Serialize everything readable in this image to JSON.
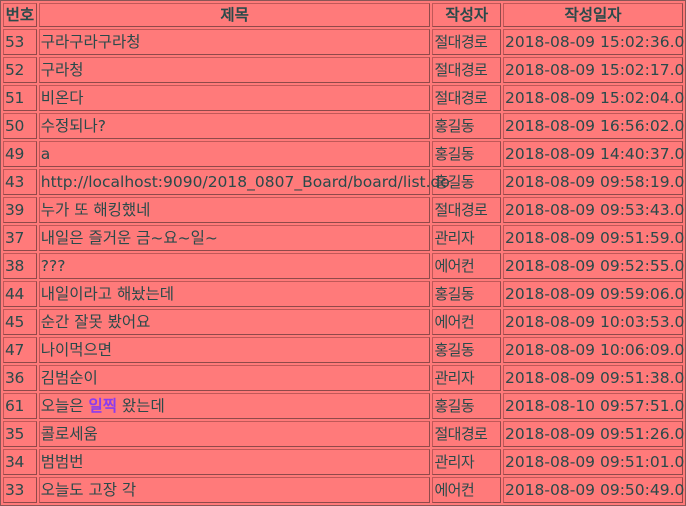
{
  "table": {
    "headers": {
      "num": "번호",
      "title": "제목",
      "author": "작성자",
      "date": "작성일자"
    },
    "rows": [
      {
        "num": "53",
        "title": "구라구라구라청",
        "author": "절대경로",
        "date": "2018-08-09 15:02:36.0"
      },
      {
        "num": "52",
        "title": "구라청",
        "author": "절대경로",
        "date": "2018-08-09 15:02:17.0"
      },
      {
        "num": "51",
        "title": "비온다",
        "author": "절대경로",
        "date": "2018-08-09 15:02:04.0"
      },
      {
        "num": "50",
        "title": "수정되나?",
        "author": "홍길동",
        "date": "2018-08-09 16:56:02.0"
      },
      {
        "num": "49",
        "title": "a",
        "author": "홍길동",
        "date": "2018-08-09 14:40:37.0"
      },
      {
        "num": "43",
        "title": "http://localhost:9090/2018_0807_Board/board/list.do",
        "author": "홍길동",
        "date": "2018-08-09 09:58:19.0"
      },
      {
        "num": "39",
        "title": "누가 또 해킹했네",
        "author": "절대경로",
        "date": "2018-08-09 09:53:43.0"
      },
      {
        "num": "37",
        "title": "내일은 즐거운 금~요~일~",
        "author": "관리자",
        "date": "2018-08-09 09:51:59.0"
      },
      {
        "num": "38",
        "title": "???",
        "author": "에어컨",
        "date": "2018-08-09 09:52:55.0"
      },
      {
        "num": "44",
        "title": "내일이라고 해놨는데",
        "author": "홍길동",
        "date": "2018-08-09 09:59:06.0"
      },
      {
        "num": "45",
        "title": "순간 잘못 봤어요",
        "author": "에어컨",
        "date": "2018-08-09 10:03:53.0"
      },
      {
        "num": "47",
        "title": "나이먹으면",
        "author": "홍길동",
        "date": "2018-08-09 10:06:09.0"
      },
      {
        "num": "36",
        "title": "김범순이",
        "author": "관리자",
        "date": "2018-08-09 09:51:38.0"
      },
      {
        "num": "61",
        "title_pre": "오늘은 ",
        "title_hl": "일찍",
        "title_post": " 왔는데",
        "author": "홍길동",
        "date": "2018-08-10 09:57:51.0"
      },
      {
        "num": "35",
        "title": "콜로세움",
        "author": "절대경로",
        "date": "2018-08-09 09:51:26.0"
      },
      {
        "num": "34",
        "title": "범범번",
        "author": "관리자",
        "date": "2018-08-09 09:51:01.0"
      },
      {
        "num": "33",
        "title": "오늘도 고장 각",
        "author": "에어컨",
        "date": "2018-08-09 09:50:49.0"
      }
    ]
  }
}
